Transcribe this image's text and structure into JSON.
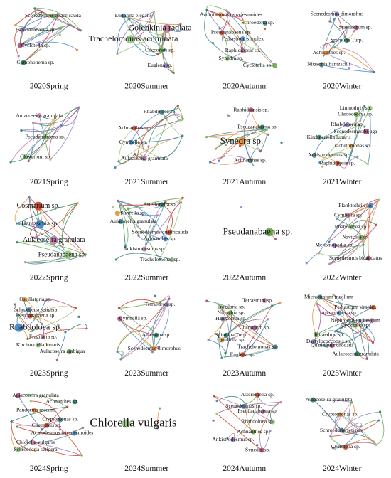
{
  "panels": [
    {
      "caption": "2020Spring",
      "nodes": [
        "Scenedesmus quadricauda",
        "Pseudanabaena sp.",
        "Cyclotella sp.",
        "Gomphonema sp."
      ]
    },
    {
      "caption": "2020Summer",
      "nodes": [
        "Eudorina elegans",
        "Golenkinia radiata",
        "Trachelomonas acuminata",
        "Cocconeis sp.",
        "Euglena sp."
      ]
    },
    {
      "caption": "2020Autumn",
      "nodes": [
        "Acutodesmus tetradesmoides",
        "Schroederia sp.",
        "Pseudanabaena sp.",
        "Pediastrum simplex",
        "Raphidiopsis sp.",
        "Synedra sp.",
        "Cyclotella sp."
      ]
    },
    {
      "caption": "2020Winter",
      "nodes": [
        "Scenedesmus dimorphus",
        "Staurastrum sp.",
        "Spirulina Turp.",
        "Achnanthes sp.",
        "Nitzschia hantzschii"
      ]
    },
    {
      "caption": "2021Spring",
      "nodes": [
        "Aulacoseira granulata",
        "Pseudanabaena sp.",
        "Closterium sp."
      ]
    },
    {
      "caption": "2021Summer",
      "nodes": [
        "Rhabdoloea sp.",
        "Achnanthes sp.",
        "Cymbella sp.",
        "Aulacoseira granulata"
      ]
    },
    {
      "caption": "2021Autumn",
      "nodes": [
        "Raphidiopsis sp.",
        "Pseudanabaena sp.",
        "Synedra sp.",
        "Achnanthes sp."
      ]
    },
    {
      "caption": "2021Winter",
      "nodes": [
        "Limnothrix sp.",
        "Chroococcus sp.",
        "Rhabdoloea sp.",
        "Scenedesmus bijuga",
        "Kirchneriella lunaris",
        "Trachelomonas sp.",
        "Ankistrodesmus sp.",
        "Raphidiopsis sp."
      ]
    },
    {
      "caption": "2022Spring",
      "nodes": [
        "Cosmarium sp.",
        "Hantzschia sp.",
        "Aulacoseira granulata",
        "Pseudanabaena sp."
      ]
    },
    {
      "caption": "2022Summer",
      "nodes": [
        "Asterionella sp.",
        "Surirella sp.",
        "Aulacoseira granulata",
        "Scenedesmus quadricauda",
        "Achnanthes sp.",
        "Ankistrodesmus sp.",
        "Trachelomonas sp."
      ]
    },
    {
      "caption": "2022Autumn",
      "nodes": [
        "Pseudanabaena sp."
      ]
    },
    {
      "caption": "2022Winter",
      "nodes": [
        "Planktothrix sp.",
        "Cymbella sp.",
        "Rhabdoloea sp.",
        "Navicula sp.",
        "Merismopedia sp.",
        "Scenedesmus bicaudatus"
      ]
    },
    {
      "caption": "2023Spring",
      "nodes": [
        "Oscillatoria sp.",
        "Schroederia setigera",
        "Pseudanabaena sp.",
        "Rhabdoloea sp.",
        "Fragilaria sp.",
        "Kirchneriella lunaris",
        "Aulacoseira ambigua"
      ]
    },
    {
      "caption": "2023Summer",
      "nodes": [
        "Tetraedron sp.",
        "Cymbella sp.",
        "Anabaena sp.",
        "Scenedesmus dimorphus"
      ]
    },
    {
      "caption": "2023Autumn",
      "nodes": [
        "Tetrastrum sp.",
        "Fragilaria sp.",
        "Nitzschia sp.",
        "Hantzschia sp.",
        "Characium sp.",
        "Spirulina Turp.",
        "Cymbella sp.",
        "Trachelomonas sp.",
        "Euglena sp."
      ]
    },
    {
      "caption": "2023Winter",
      "nodes": [
        "Micractinium pusillum",
        "Pediastrum simplex",
        "Aphanocapsa sp.",
        "Nephrocytium lunatum",
        "Cyclotella sp.",
        "Tetraedron sp.",
        "Dactylococcopsis sp.",
        "Quadrigula chodatii",
        "Aulacoseira granulata"
      ]
    },
    {
      "caption": "2024Spring",
      "nodes": [
        "Aulacoseira granulata",
        "Achnanthes sp.",
        "Pandorina morum",
        "Cryptomonas sp.",
        "Cocconeis sp.",
        "Acutodesmus tetradesmoides",
        "Chlorella vulgaris",
        "Schroederia setigera"
      ]
    },
    {
      "caption": "2024Summer",
      "nodes": [
        "Chlorella vulgaris"
      ]
    },
    {
      "caption": "2024Autumn",
      "nodes": [
        "Asterionella sp.",
        "Scenedesmus sp.",
        "Pseudanabaena sp.",
        "Rhabdoloea sp.",
        "Achnanthes sp.",
        "Ankistrodesmus sp.",
        "Synedra sp."
      ]
    },
    {
      "caption": "2024Winter",
      "nodes": [
        "Aulacoseira granulata",
        "Cryptomonas sp.",
        "Schroederia setigera",
        "Cyclotella sp."
      ]
    }
  ]
}
